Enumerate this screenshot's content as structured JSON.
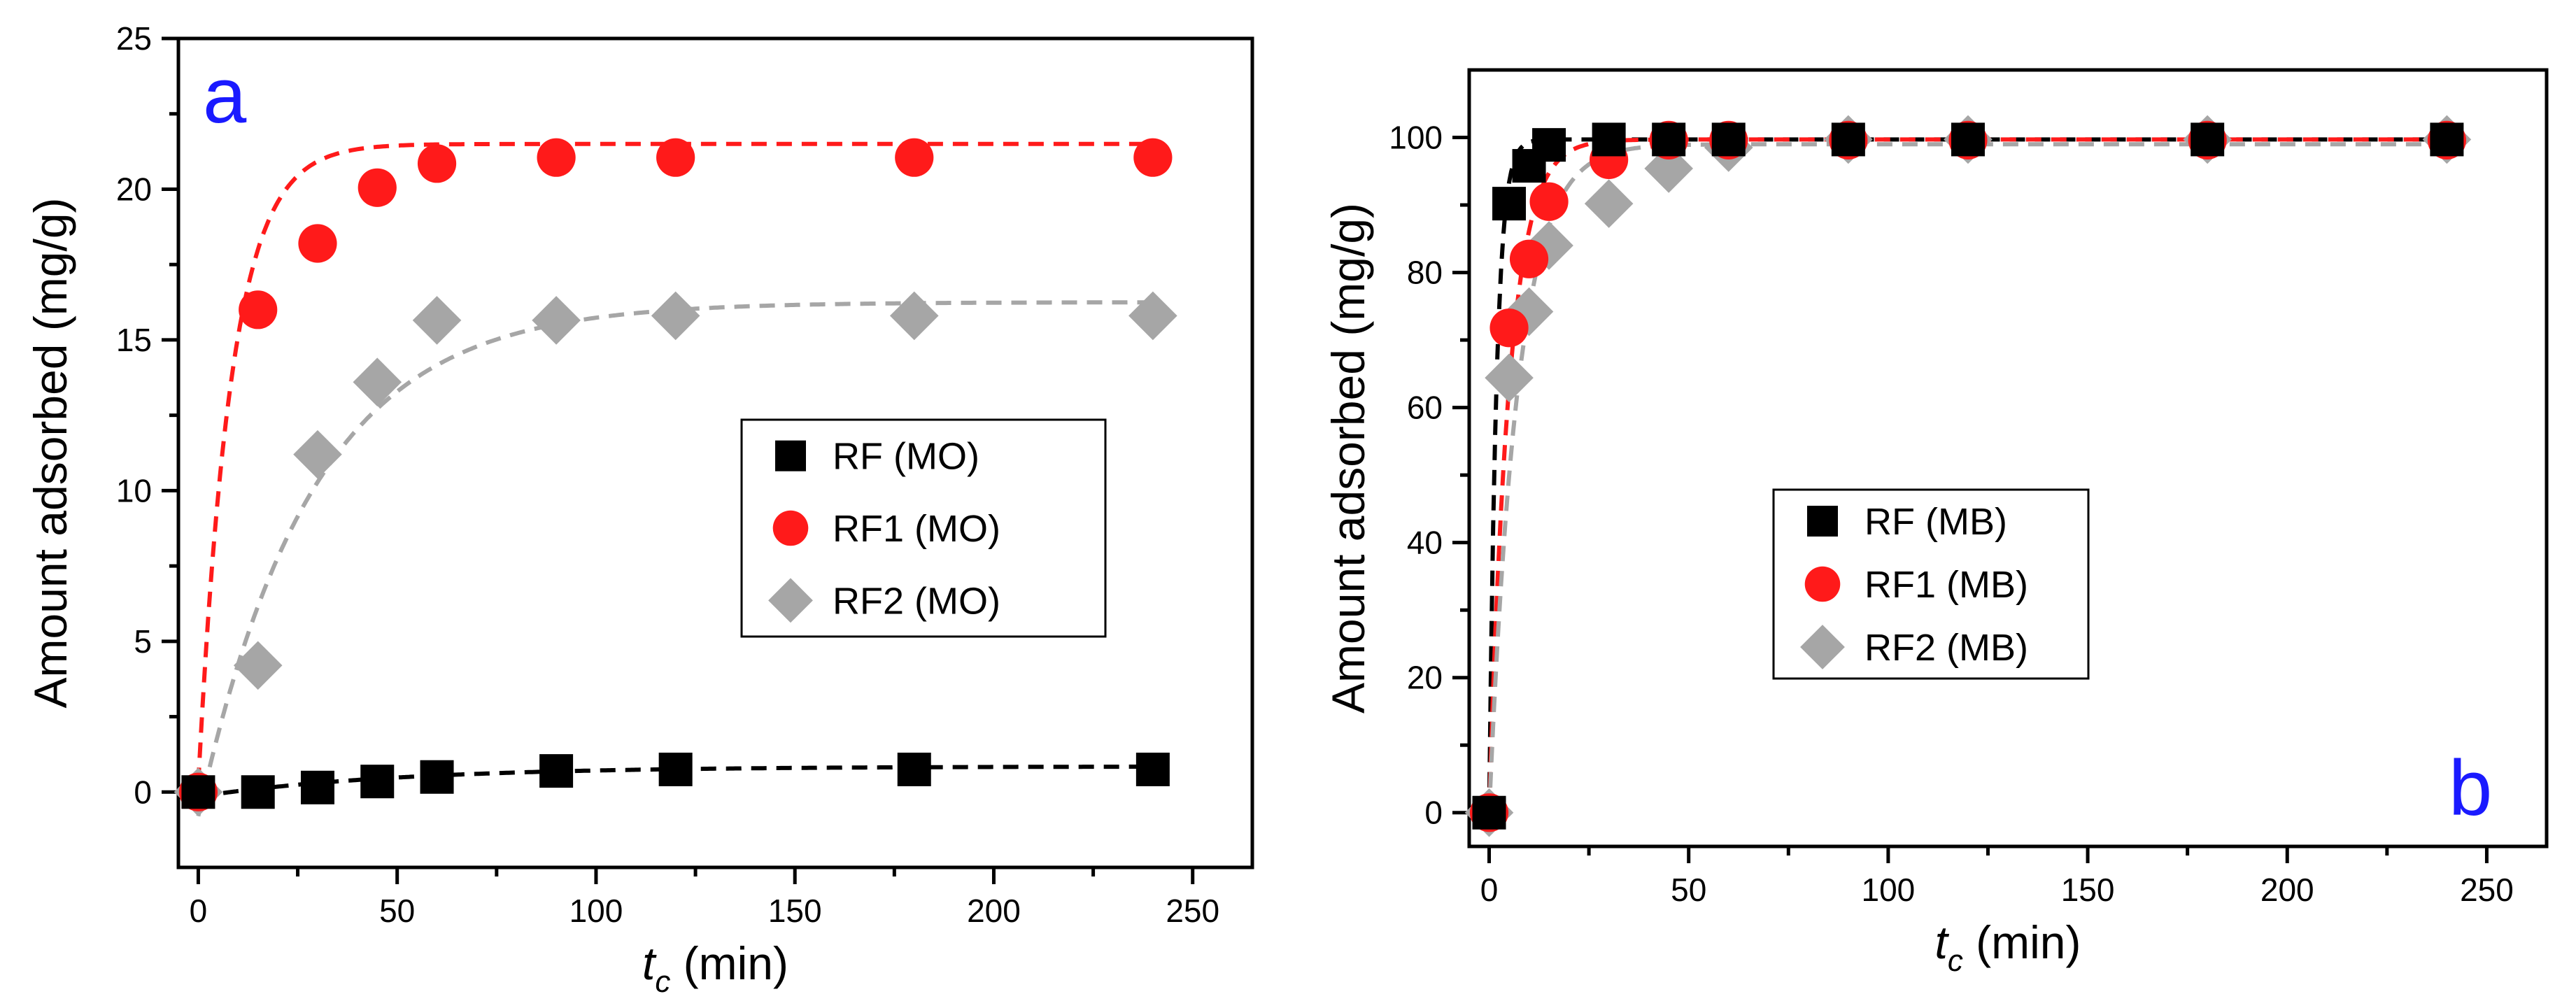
{
  "chart_data": [
    {
      "type": "scatter",
      "panel_label": "a",
      "panel_label_color": "#1a1aff",
      "xlabel_main": "t",
      "xlabel_sub": "c",
      "xlabel_rest": " (min)",
      "ylabel": "Amount adsorbed (mg/g)",
      "xlim": [
        -5,
        265
      ],
      "ylim": [
        -2.5,
        25
      ],
      "xticks": [
        0,
        50,
        100,
        150,
        200,
        250
      ],
      "yticks": [
        0,
        5,
        10,
        15,
        20,
        25
      ],
      "legend_position": "center-right",
      "series": [
        {
          "name": "RF (MO)",
          "marker": "square",
          "color": "#000000",
          "x": [
            0,
            15,
            30,
            45,
            60,
            90,
            120,
            180,
            240
          ],
          "y": [
            0,
            0.0,
            0.15,
            0.35,
            0.5,
            0.7,
            0.75,
            0.75,
            0.75
          ],
          "fit": {
            "qe": 0.85,
            "k": 0.02,
            "y0": -0.15
          }
        },
        {
          "name": "RF1 (MO)",
          "marker": "circle",
          "color": "#ff1a1a",
          "x": [
            0,
            15,
            30,
            45,
            60,
            90,
            120,
            180,
            240
          ],
          "y": [
            0,
            16,
            18.2,
            20.05,
            20.85,
            21.05,
            21.05,
            21.05,
            21.05
          ],
          "fit": {
            "qe": 21.5,
            "k": 0.12,
            "y0": 0.3,
            "lin": 0.006,
            "lin_t": 40
          }
        },
        {
          "name": "RF2 (MO)",
          "marker": "diamond",
          "color": "#a6a6a6",
          "x": [
            0,
            15,
            30,
            45,
            60,
            90,
            120,
            180,
            240
          ],
          "y": [
            0,
            4.2,
            11.2,
            13.6,
            15.65,
            15.65,
            15.8,
            15.8,
            15.8
          ],
          "fit": {
            "qe": 16.25,
            "k": 0.035,
            "y0": -0.8
          }
        }
      ]
    },
    {
      "type": "scatter",
      "panel_label": "b",
      "panel_label_color": "#1a1aff",
      "xlabel_main": "t",
      "xlabel_sub": "c",
      "xlabel_rest": " (min)",
      "ylabel": "Amount adsorbed (mg/g)",
      "xlim": [
        -5,
        265
      ],
      "ylim": [
        -5,
        110
      ],
      "xticks": [
        0,
        50,
        100,
        150,
        200,
        250
      ],
      "yticks": [
        0,
        20,
        40,
        60,
        80,
        100
      ],
      "legend_position": "center-left",
      "series": [
        {
          "name": "RF (MB)",
          "marker": "square",
          "color": "#000000",
          "x": [
            0,
            5,
            10,
            15,
            30,
            45,
            60,
            90,
            120,
            180,
            240
          ],
          "y": [
            0,
            90.2,
            95.8,
            98.9,
            99.7,
            99.7,
            99.7,
            99.7,
            99.7,
            99.7,
            99.7
          ],
          "fit": {
            "qe": 99.7,
            "k": 0.55,
            "y0": 0
          }
        },
        {
          "name": "RF1 (MB)",
          "marker": "circle",
          "color": "#ff1a1a",
          "x": [
            0,
            5,
            10,
            15,
            30,
            45,
            60,
            90,
            120,
            180,
            240
          ],
          "y": [
            0,
            71.8,
            82,
            90.5,
            96.7,
            99.6,
            99.6,
            99.6,
            99.6,
            99.6,
            99.6
          ],
          "fit": {
            "qe": 99.7,
            "k": 0.2,
            "y0": 0
          }
        },
        {
          "name": "RF2 (MB)",
          "marker": "diamond",
          "color": "#a6a6a6",
          "x": [
            0,
            5,
            10,
            15,
            30,
            45,
            60,
            90,
            120,
            180,
            240
          ],
          "y": [
            0,
            64.4,
            74.2,
            84,
            90.2,
            95.4,
            98.5,
            99.7,
            99.7,
            99.7,
            99.7
          ],
          "fit": {
            "qe": 99.0,
            "k": 0.14,
            "y0": 0
          }
        }
      ]
    }
  ]
}
